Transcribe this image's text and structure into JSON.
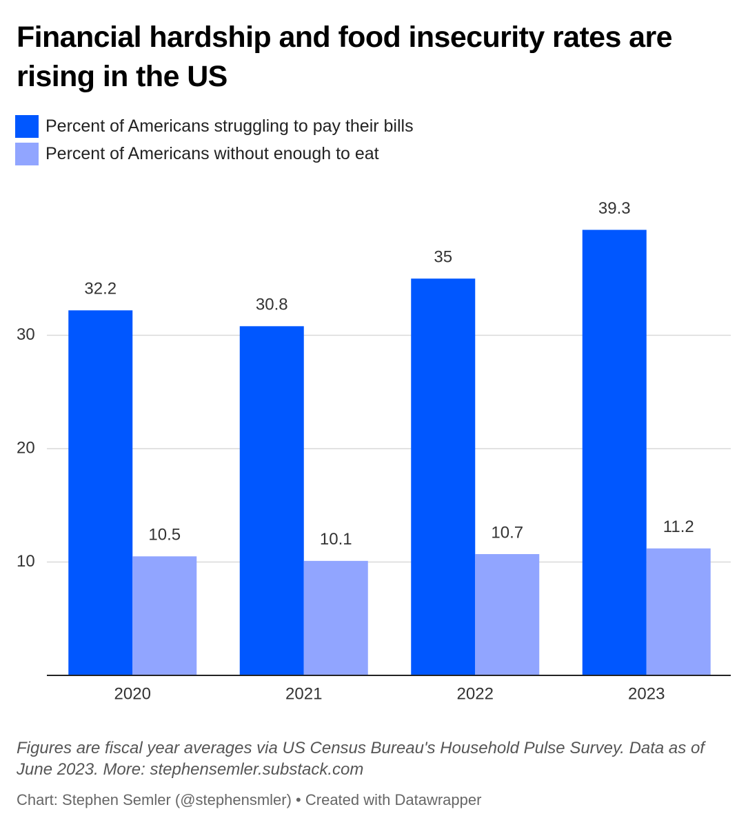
{
  "chart_data": {
    "type": "bar",
    "title": "Financial hardship and food insecurity rates are rising in the US",
    "categories": [
      "2020",
      "2021",
      "2022",
      "2023"
    ],
    "series": [
      {
        "name": "Percent of Americans struggling to pay their bills",
        "color": "#0057ff",
        "values": [
          32.2,
          30.8,
          35,
          39.3
        ]
      },
      {
        "name": "Percent of Americans without enough to eat",
        "color": "#91a5ff",
        "values": [
          10.5,
          10.1,
          10.7,
          11.2
        ]
      }
    ],
    "ylim": [
      0,
      40
    ],
    "yticks": [
      10,
      20,
      30
    ],
    "grid": true,
    "caption": "Figures are fiscal year averages via US Census Bureau's Household Pulse Survey. Data as of June 2023. More: stephensemler.substack.com",
    "credit": "Chart: Stephen Semler (@stephensmler) • Created with Datawrapper"
  }
}
